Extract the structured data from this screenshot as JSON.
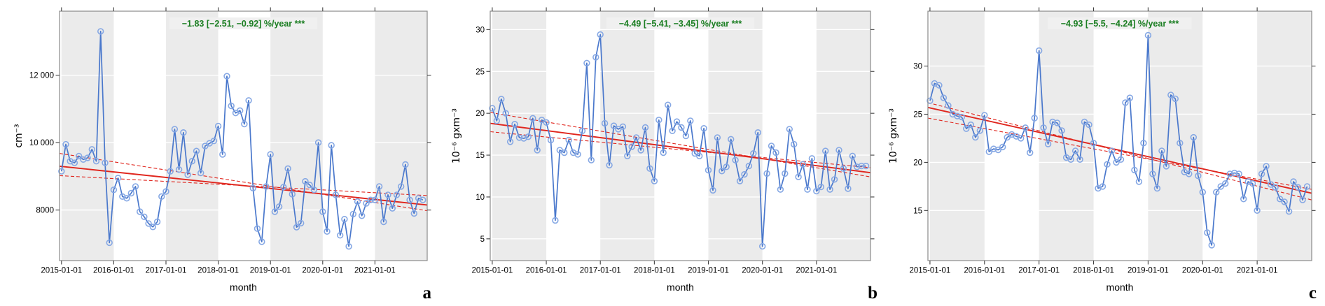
{
  "figure": {
    "background": "#ffffff",
    "shaded_band_color": "#ebebeb",
    "shaded_years": [
      "2015",
      "2017",
      "2019",
      "2021"
    ]
  },
  "chart_data": [
    {
      "id": "a",
      "type": "line",
      "panel_letter": "a",
      "annotation": "−1.83 [−2.51, −0.92] %/year ***",
      "annotation_color": "#1b7e22",
      "xlabel": "month",
      "ylabel": "cm⁻³",
      "x_tick_labels": [
        "2015-01-01",
        "2016-01-01",
        "2017-01-01",
        "2018-01-01",
        "2019-01-01",
        "2020-01-01",
        "2021-01-01"
      ],
      "x_tick_months": [
        0,
        12,
        24,
        36,
        48,
        60,
        72
      ],
      "shaded_band_start_months": [
        0,
        24,
        48,
        72
      ],
      "ylim": [
        6500,
        13900
      ],
      "yticks": [
        {
          "v": 8000,
          "label": "8000"
        },
        {
          "v": 10000,
          "label": "10 000"
        },
        {
          "v": 12000,
          "label": "12 000"
        }
      ],
      "values": [
        9150,
        9950,
        9450,
        9400,
        9600,
        9500,
        9550,
        9800,
        9450,
        13300,
        9400,
        7030,
        8600,
        8950,
        8400,
        8350,
        8500,
        8700,
        7950,
        7800,
        7600,
        7500,
        7650,
        8400,
        8550,
        9150,
        10400,
        9200,
        10300,
        9050,
        9450,
        9750,
        9100,
        9900,
        9980,
        10050,
        10490,
        9650,
        11970,
        11090,
        10880,
        10950,
        10550,
        11250,
        8650,
        7450,
        7060,
        8700,
        9650,
        7950,
        8100,
        8680,
        9230,
        8470,
        7490,
        7610,
        8850,
        8745,
        8600,
        10000,
        7950,
        7365,
        9920,
        8450,
        7250,
        7730,
        6920,
        7880,
        8250,
        7830,
        8200,
        8300,
        8300,
        8700,
        7650,
        8450,
        8050,
        8450,
        8700,
        9350,
        8300,
        7900,
        8350,
        8300
      ],
      "trend_line": {
        "start": 9300,
        "end": 8150
      },
      "ci_lines": [
        {
          "start": 9680,
          "end": 7980
        },
        {
          "start": 9020,
          "end": 8430
        }
      ],
      "series_color": "#4a78cc",
      "marker_color": "#86a8e4",
      "trend_color": "#e0251d",
      "band_color": "#ebebeb"
    },
    {
      "id": "b",
      "type": "line",
      "panel_letter": "b",
      "annotation": "−4.49 [−5.41, −3.45] %/year ***",
      "annotation_color": "#1b7e22",
      "xlabel": "month",
      "ylabel": "10⁻⁶ gxm⁻³",
      "x_tick_labels": [
        "2015-01-01",
        "2016-01-01",
        "2017-01-01",
        "2018-01-01",
        "2019-01-01",
        "2020-01-01",
        "2021-01-01"
      ],
      "x_tick_months": [
        0,
        12,
        24,
        36,
        48,
        60,
        72
      ],
      "shaded_band_start_months": [
        0,
        24,
        48,
        72
      ],
      "ylim": [
        2.4,
        32.2
      ],
      "yticks": [
        {
          "v": 5,
          "label": "5"
        },
        {
          "v": 10,
          "label": "10"
        },
        {
          "v": 15,
          "label": "15"
        },
        {
          "v": 20,
          "label": "20"
        },
        {
          "v": 25,
          "label": "25"
        },
        {
          "v": 30,
          "label": "30"
        }
      ],
      "values": [
        20.6,
        19.1,
        21.7,
        20.0,
        16.6,
        18.7,
        17.1,
        17.0,
        17.2,
        19.4,
        15.6,
        19.2,
        18.9,
        16.8,
        7.2,
        15.6,
        15.3,
        16.8,
        15.3,
        15.1,
        17.9,
        26.0,
        14.4,
        26.7,
        29.4,
        18.8,
        13.8,
        18.5,
        18.1,
        18.4,
        14.9,
        16.0,
        17.1,
        15.6,
        18.3,
        13.4,
        11.9,
        19.2,
        15.3,
        21.0,
        17.9,
        19.0,
        18.3,
        17.3,
        19.1,
        15.2,
        14.9,
        18.2,
        13.2,
        10.8,
        17.1,
        13.1,
        13.6,
        16.9,
        14.4,
        11.9,
        12.7,
        13.7,
        15.2,
        17.7,
        4.1,
        12.8,
        16.1,
        15.3,
        10.9,
        12.8,
        18.1,
        16.3,
        12.4,
        13.9,
        10.9,
        14.6,
        10.7,
        11.2,
        15.5,
        10.9,
        12.1,
        15.6,
        13.4,
        11.0,
        14.9,
        13.6,
        13.7,
        13.7
      ],
      "trend_line": {
        "start": 18.8,
        "end": 12.9
      },
      "ci_lines": [
        {
          "start": 20.1,
          "end": 12.4
        },
        {
          "start": 17.8,
          "end": 13.5
        }
      ],
      "series_color": "#4a78cc",
      "marker_color": "#86a8e4",
      "trend_color": "#e0251d",
      "band_color": "#ebebeb"
    },
    {
      "id": "c",
      "type": "line",
      "panel_letter": "c",
      "annotation": "−4.93 [−5.5, −4.24] %/year ***",
      "annotation_color": "#1b7e22",
      "xlabel": "month",
      "ylabel": "10⁻⁶ gxm⁻³",
      "x_tick_labels": [
        "2015-01-01",
        "2016-01-01",
        "2017-01-01",
        "2018-01-01",
        "2019-01-01",
        "2020-01-01",
        "2021-01-01"
      ],
      "x_tick_months": [
        0,
        12,
        24,
        36,
        48,
        60,
        72
      ],
      "shaded_band_start_months": [
        0,
        24,
        48,
        72
      ],
      "ylim": [
        9.8,
        35.7
      ],
      "yticks": [
        {
          "v": 15,
          "label": "15"
        },
        {
          "v": 20,
          "label": "20"
        },
        {
          "v": 25,
          "label": "25"
        },
        {
          "v": 30,
          "label": "30"
        }
      ],
      "values": [
        26.4,
        28.2,
        28.0,
        26.7,
        25.9,
        25.0,
        24.8,
        24.7,
        23.5,
        23.9,
        22.6,
        23.3,
        24.9,
        21.1,
        21.4,
        21.3,
        21.6,
        22.6,
        22.9,
        22.7,
        22.5,
        23.6,
        21.0,
        24.6,
        31.6,
        23.6,
        21.9,
        24.2,
        24.1,
        23.3,
        20.5,
        20.3,
        21.2,
        20.3,
        24.2,
        23.9,
        22.0,
        17.3,
        17.5,
        19.8,
        21.2,
        20.0,
        20.3,
        26.2,
        26.7,
        19.2,
        18.0,
        22.0,
        33.2,
        18.8,
        17.3,
        21.2,
        19.6,
        27.0,
        26.6,
        22.0,
        19.0,
        18.8,
        22.6,
        18.6,
        16.9,
        12.7,
        11.4,
        16.9,
        17.5,
        17.8,
        18.8,
        18.9,
        18.8,
        16.2,
        18.0,
        17.8,
        15.0,
        18.8,
        19.6,
        17.7,
        17.4,
        16.2,
        15.9,
        14.9,
        18.0,
        17.4,
        16.1,
        17.5
      ],
      "trend_line": {
        "start": 25.7,
        "end": 16.8
      },
      "ci_lines": [
        {
          "start": 26.2,
          "end": 16.1
        },
        {
          "start": 24.6,
          "end": 17.2
        }
      ],
      "series_color": "#4a78cc",
      "marker_color": "#86a8e4",
      "trend_color": "#e0251d",
      "band_color": "#ebebeb"
    }
  ]
}
